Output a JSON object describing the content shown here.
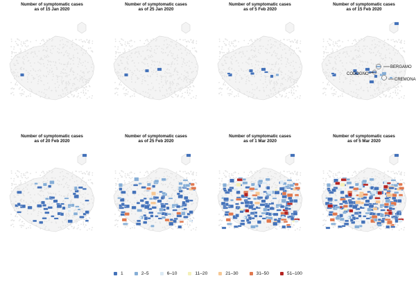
{
  "panels": [
    {
      "line1": "Number of symptomatic cases",
      "line2": "as of 15 Jan 2020",
      "stage": 0
    },
    {
      "line1": "Number of symptomatic cases",
      "line2": "as of 25 Jan 2020",
      "stage": 1
    },
    {
      "line1": "Number of symptomatic cases",
      "line2": "as of 5 Feb 2020",
      "stage": 2
    },
    {
      "line1": "Number of symptomatic cases",
      "line2": "as of 15 Feb 2020",
      "stage": 3
    },
    {
      "line1": "Number of symptomatic cases",
      "line2": "as of 20 Feb 2020",
      "stage": 4
    },
    {
      "line1": "Number of symptomatic cases",
      "line2": "as of 25 Feb 2020",
      "stage": 5
    },
    {
      "line1": "Number of symptomatic cases",
      "line2": "as of 1 Mar 2020",
      "stage": 6
    },
    {
      "line1": "Number of symptomatic cases",
      "line2": "as of 5 Mar 2020",
      "stage": 7
    }
  ],
  "annotations": {
    "bergamo": "BERGAMO",
    "codogno": "CODOGNO",
    "cremona": "CREMONA"
  },
  "legend": [
    {
      "label": "1",
      "color": "#4472b9"
    },
    {
      "label": "2–5",
      "color": "#86aed6"
    },
    {
      "label": "6–10",
      "color": "#dceaf4"
    },
    {
      "label": "11–20",
      "color": "#f4f0b8"
    },
    {
      "label": "21–30",
      "color": "#f6c895"
    },
    {
      "label": "31–50",
      "color": "#e0784e"
    },
    {
      "label": "51–100",
      "color": "#b42422"
    }
  ]
}
